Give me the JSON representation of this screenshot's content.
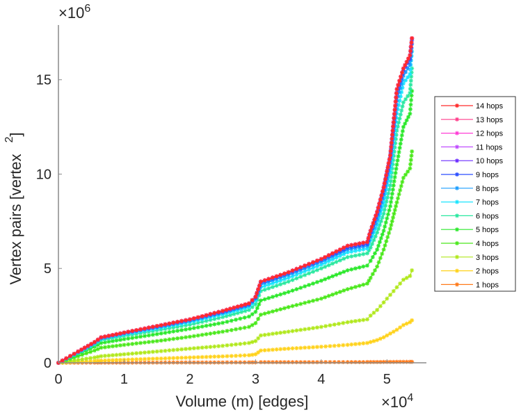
{
  "chart_data": {
    "type": "line",
    "title": "",
    "xlabel": "Volume (m) [edges]",
    "ylabel": "Vertex pairs [vertex",
    "ylabel_sup": "2",
    "ylabel_close": "]",
    "x_multiplier": "×10",
    "x_multiplier_exp": "4",
    "y_multiplier": "×10",
    "y_multiplier_exp": "6",
    "xlim": [
      0,
      5.6
    ],
    "ylim": [
      0,
      17.9
    ],
    "xticks": [
      0,
      1,
      2,
      3,
      4,
      5
    ],
    "xtick_labels": [
      "0",
      "1",
      "2",
      "3",
      "4",
      "5"
    ],
    "yticks": [
      0,
      5,
      10,
      15
    ],
    "ytick_labels": [
      "0",
      "5",
      "10",
      "15"
    ],
    "grid": false,
    "legend_position": "right",
    "x": [
      0,
      0.3,
      0.55,
      0.65,
      1.0,
      1.5,
      2.0,
      2.5,
      2.9,
      3.0,
      3.08,
      3.5,
      4.0,
      4.4,
      4.7,
      4.75,
      4.85,
      4.95,
      5.05,
      5.15,
      5.25,
      5.35,
      5.38
    ],
    "series": [
      {
        "name": "14 hops",
        "color": "#ff2a2a",
        "values": [
          0,
          0.6,
          1.1,
          1.35,
          1.6,
          1.95,
          2.3,
          2.75,
          3.15,
          3.5,
          4.3,
          4.8,
          5.5,
          6.2,
          6.4,
          7.0,
          8.0,
          9.3,
          11.0,
          14.5,
          15.6,
          16.3,
          17.2
        ]
      },
      {
        "name": "13 hops",
        "color": "#ff3d8a",
        "values": [
          0,
          0.6,
          1.1,
          1.35,
          1.6,
          1.95,
          2.3,
          2.75,
          3.15,
          3.5,
          4.3,
          4.8,
          5.5,
          6.2,
          6.4,
          7.0,
          8.0,
          9.3,
          11.0,
          14.5,
          15.6,
          16.3,
          17.2
        ]
      },
      {
        "name": "12 hops",
        "color": "#ff3dd6",
        "values": [
          0,
          0.6,
          1.1,
          1.35,
          1.6,
          1.95,
          2.3,
          2.75,
          3.15,
          3.5,
          4.3,
          4.8,
          5.5,
          6.2,
          6.4,
          7.0,
          8.0,
          9.3,
          11.0,
          14.5,
          15.6,
          16.3,
          17.2
        ]
      },
      {
        "name": "11 hops",
        "color": "#c04dff",
        "values": [
          0,
          0.6,
          1.1,
          1.35,
          1.6,
          1.95,
          2.3,
          2.75,
          3.15,
          3.5,
          4.3,
          4.8,
          5.5,
          6.2,
          6.4,
          7.0,
          8.0,
          9.3,
          11.0,
          14.5,
          15.6,
          16.3,
          17.2
        ]
      },
      {
        "name": "10 hops",
        "color": "#6a2aff",
        "values": [
          0,
          0.6,
          1.1,
          1.35,
          1.6,
          1.95,
          2.3,
          2.75,
          3.15,
          3.5,
          4.3,
          4.8,
          5.5,
          6.2,
          6.4,
          7.0,
          8.0,
          9.3,
          11.0,
          14.5,
          15.6,
          16.3,
          17.2
        ]
      },
      {
        "name": "9 hops",
        "color": "#2a4dff",
        "values": [
          0,
          0.58,
          1.08,
          1.33,
          1.58,
          1.92,
          2.27,
          2.7,
          3.1,
          3.45,
          4.25,
          4.75,
          5.45,
          6.1,
          6.3,
          6.9,
          7.9,
          9.2,
          10.9,
          14.3,
          15.5,
          16.1,
          17.1
        ]
      },
      {
        "name": "8 hops",
        "color": "#1a9dff",
        "values": [
          0,
          0.56,
          1.05,
          1.3,
          1.55,
          1.88,
          2.22,
          2.65,
          3.05,
          3.4,
          4.15,
          4.65,
          5.35,
          6.0,
          6.2,
          6.7,
          7.6,
          8.9,
          10.6,
          13.9,
          15.2,
          15.8,
          16.9
        ]
      },
      {
        "name": "7 hops",
        "color": "#1ae5ff",
        "values": [
          0,
          0.54,
          1.02,
          1.27,
          1.5,
          1.82,
          2.15,
          2.57,
          2.95,
          3.3,
          4.0,
          4.5,
          5.2,
          5.85,
          6.05,
          6.5,
          7.3,
          8.5,
          10.1,
          13.2,
          14.8,
          15.3,
          16.5
        ]
      },
      {
        "name": "6 hops",
        "color": "#2ae8a0",
        "values": [
          0,
          0.5,
          0.95,
          1.2,
          1.42,
          1.72,
          2.02,
          2.42,
          2.8,
          3.1,
          3.8,
          4.3,
          5.0,
          5.6,
          5.8,
          6.1,
          6.9,
          7.9,
          9.4,
          12.3,
          13.8,
          14.3,
          15.6
        ]
      },
      {
        "name": "5 hops",
        "color": "#2ae82a",
        "values": [
          0,
          0.45,
          0.85,
          1.05,
          1.25,
          1.52,
          1.8,
          2.12,
          2.45,
          2.7,
          3.3,
          3.75,
          4.35,
          4.9,
          5.15,
          5.4,
          6.0,
          7.0,
          8.3,
          10.5,
          12.5,
          13.2,
          14.4
        ]
      },
      {
        "name": "4 hops",
        "color": "#4ae81a",
        "values": [
          0,
          0.35,
          0.65,
          0.8,
          0.95,
          1.15,
          1.38,
          1.65,
          1.9,
          2.1,
          2.55,
          2.95,
          3.4,
          3.9,
          4.2,
          4.5,
          5.1,
          6.0,
          7.1,
          8.5,
          9.8,
          10.3,
          11.2
        ]
      },
      {
        "name": "3 hops",
        "color": "#b0e81a",
        "values": [
          0,
          0.15,
          0.28,
          0.35,
          0.45,
          0.6,
          0.75,
          0.9,
          1.05,
          1.15,
          1.45,
          1.65,
          1.9,
          2.15,
          2.3,
          2.5,
          2.8,
          3.2,
          3.6,
          4.0,
          4.4,
          4.6,
          4.9
        ]
      },
      {
        "name": "2 hops",
        "color": "#ffd21a",
        "values": [
          0,
          0.05,
          0.1,
          0.12,
          0.16,
          0.22,
          0.28,
          0.34,
          0.4,
          0.45,
          0.65,
          0.75,
          0.85,
          0.95,
          1.05,
          1.1,
          1.2,
          1.35,
          1.55,
          1.75,
          2.0,
          2.15,
          2.25
        ]
      },
      {
        "name": "1 hops",
        "color": "#ff7a1a",
        "values": [
          0,
          0.005,
          0.01,
          0.01,
          0.01,
          0.015,
          0.02,
          0.02,
          0.025,
          0.025,
          0.03,
          0.03,
          0.035,
          0.035,
          0.04,
          0.04,
          0.04,
          0.045,
          0.045,
          0.05,
          0.05,
          0.05,
          0.05
        ]
      }
    ]
  }
}
